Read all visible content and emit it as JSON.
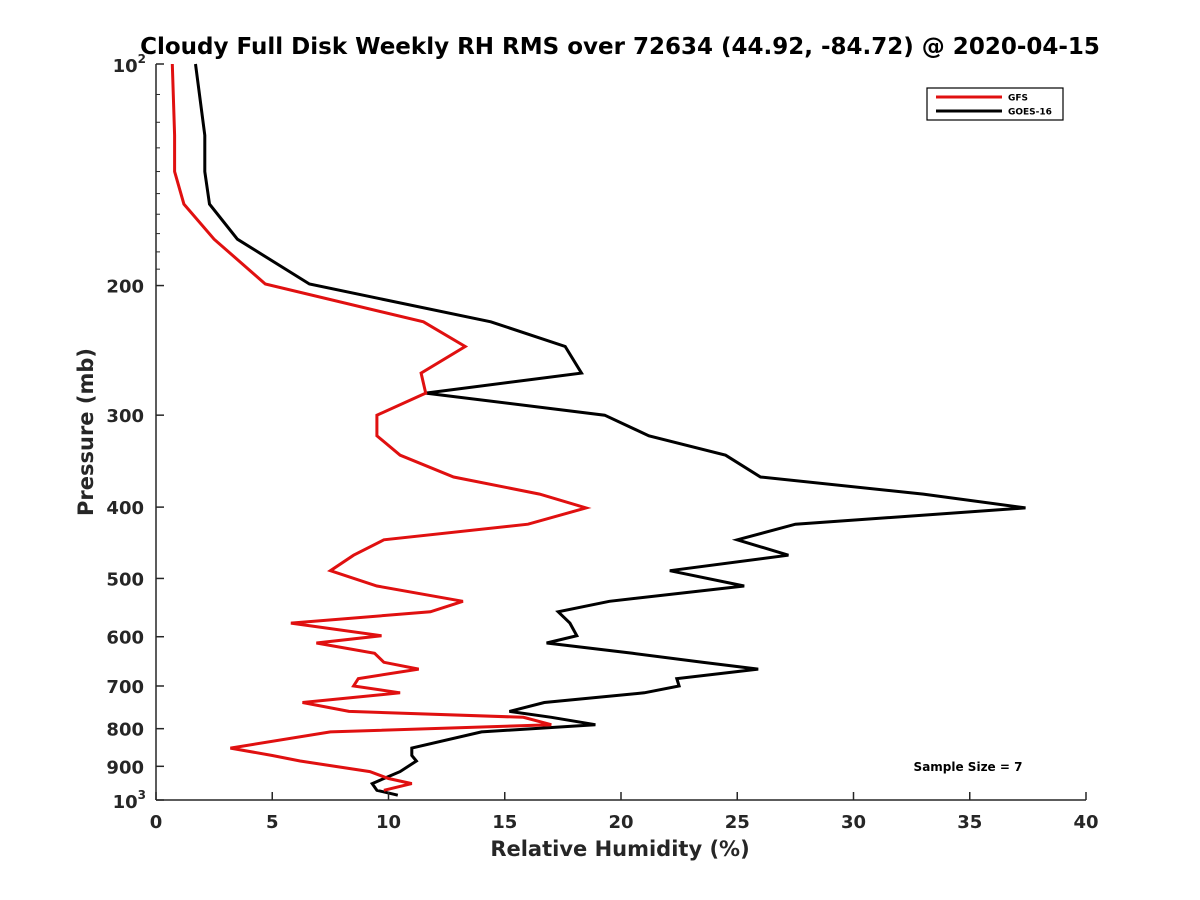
{
  "chart_data": {
    "type": "line",
    "title": "Cloudy Full Disk Weekly RH RMS over 72634 (44.92, -84.72) @ 2020-04-15",
    "xlabel": "Relative Humidity (%)",
    "ylabel": "Pressure (mb)",
    "xlim": [
      0,
      40
    ],
    "ylim": [
      100,
      1000
    ],
    "yscale": "log",
    "y_reversed": true,
    "x_ticks": [
      0,
      5,
      10,
      15,
      20,
      25,
      30,
      35,
      40
    ],
    "y_ticks": [
      {
        "value": 100,
        "base": "10",
        "exp": "2"
      },
      {
        "value": 200,
        "label": "200"
      },
      {
        "value": 300,
        "label": "300"
      },
      {
        "value": 400,
        "label": "400"
      },
      {
        "value": 500,
        "label": "500"
      },
      {
        "value": 600,
        "label": "600"
      },
      {
        "value": 700,
        "label": "700"
      },
      {
        "value": 800,
        "label": "800"
      },
      {
        "value": 900,
        "label": "900"
      },
      {
        "value": 1000,
        "base": "10",
        "exp": "3"
      }
    ],
    "grid": false,
    "legend_position": "top-right",
    "annotation": "Sample Size = 7",
    "series": [
      {
        "name": "GFS",
        "color": "#e01010",
        "points": [
          [
            0.7,
            100
          ],
          [
            0.8,
            125
          ],
          [
            0.8,
            140
          ],
          [
            1.2,
            155
          ],
          [
            2.5,
            173
          ],
          [
            4.7,
            199
          ],
          [
            11.5,
            224
          ],
          [
            13.3,
            242
          ],
          [
            11.4,
            263
          ],
          [
            11.6,
            280
          ],
          [
            9.5,
            300
          ],
          [
            9.5,
            320
          ],
          [
            10.5,
            340
          ],
          [
            12.8,
            364
          ],
          [
            16.5,
            384
          ],
          [
            18.5,
            401
          ],
          [
            16.0,
            422
          ],
          [
            9.8,
            443
          ],
          [
            8.5,
            465
          ],
          [
            7.5,
            488
          ],
          [
            9.5,
            512
          ],
          [
            13.2,
            537
          ],
          [
            11.8,
            555
          ],
          [
            5.8,
            575
          ],
          [
            9.7,
            598
          ],
          [
            6.9,
            612
          ],
          [
            9.4,
            632
          ],
          [
            9.8,
            650
          ],
          [
            11.3,
            664
          ],
          [
            8.7,
            684
          ],
          [
            8.5,
            700
          ],
          [
            10.5,
            715
          ],
          [
            6.3,
            737
          ],
          [
            8.3,
            758
          ],
          [
            15.8,
            772
          ],
          [
            17.0,
            790
          ],
          [
            7.5,
            808
          ],
          [
            3.2,
            850
          ],
          [
            5.0,
            870
          ],
          [
            6.2,
            885
          ],
          [
            9.2,
            915
          ],
          [
            10.0,
            935
          ],
          [
            11.0,
            950
          ],
          [
            9.8,
            970
          ]
        ]
      },
      {
        "name": "GOES-16",
        "color": "#000000",
        "points": [
          [
            1.7,
            100
          ],
          [
            2.1,
            125
          ],
          [
            2.1,
            140
          ],
          [
            2.3,
            155
          ],
          [
            3.5,
            173
          ],
          [
            6.6,
            199
          ],
          [
            14.4,
            224
          ],
          [
            17.6,
            242
          ],
          [
            18.3,
            263
          ],
          [
            11.6,
            280
          ],
          [
            19.3,
            300
          ],
          [
            21.2,
            320
          ],
          [
            24.5,
            340
          ],
          [
            26.0,
            364
          ],
          [
            33.0,
            384
          ],
          [
            37.4,
            401
          ],
          [
            27.5,
            422
          ],
          [
            25.0,
            443
          ],
          [
            27.2,
            465
          ],
          [
            22.1,
            488
          ],
          [
            25.3,
            512
          ],
          [
            19.5,
            537
          ],
          [
            17.3,
            555
          ],
          [
            17.8,
            575
          ],
          [
            18.1,
            598
          ],
          [
            16.8,
            612
          ],
          [
            20.5,
            632
          ],
          [
            23.5,
            650
          ],
          [
            25.9,
            664
          ],
          [
            22.4,
            684
          ],
          [
            22.5,
            700
          ],
          [
            21.0,
            715
          ],
          [
            16.7,
            737
          ],
          [
            15.2,
            758
          ],
          [
            17.0,
            772
          ],
          [
            18.9,
            790
          ],
          [
            14.0,
            808
          ],
          [
            11.0,
            850
          ],
          [
            11.0,
            870
          ],
          [
            11.2,
            885
          ],
          [
            10.5,
            915
          ],
          [
            9.8,
            935
          ],
          [
            9.3,
            950
          ],
          [
            9.5,
            970
          ],
          [
            10.4,
            985
          ]
        ]
      }
    ]
  }
}
